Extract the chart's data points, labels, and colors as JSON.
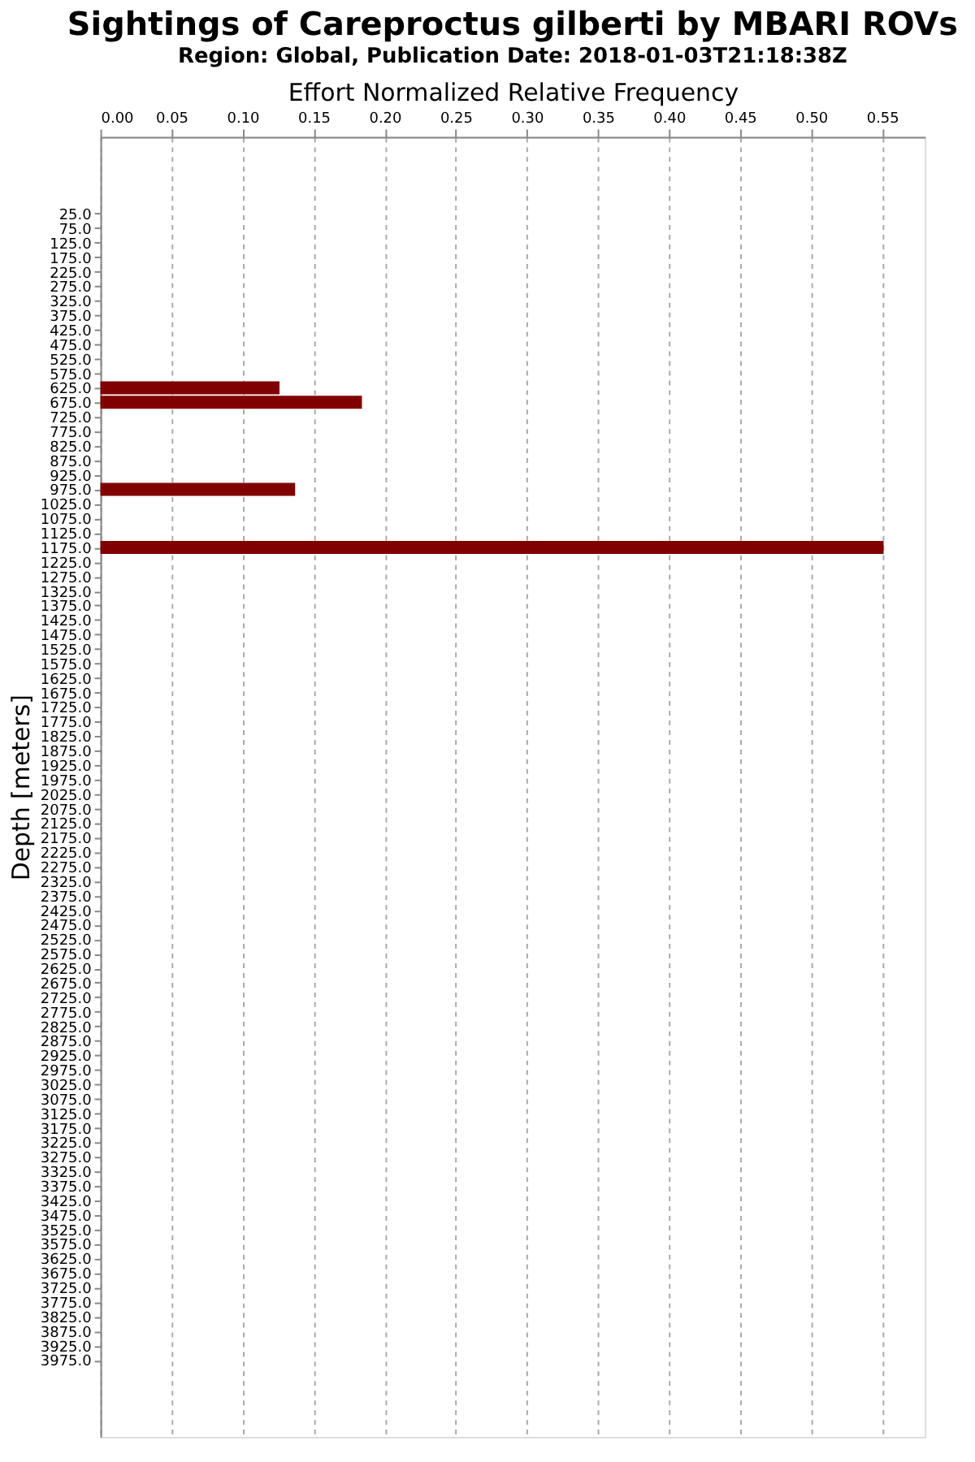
{
  "chart_data": {
    "type": "bar",
    "orientation": "horizontal",
    "title": "Sightings of Careproctus gilberti by MBARI ROVs",
    "subtitle": "Region: Global, Publication Date: 2018-01-03T21:18:38Z",
    "xlabel": "Effort Normalized Relative Frequency",
    "ylabel": "Depth [meters]",
    "categories": [
      "25.0",
      "75.0",
      "125.0",
      "175.0",
      "225.0",
      "275.0",
      "325.0",
      "375.0",
      "425.0",
      "475.0",
      "525.0",
      "575.0",
      "625.0",
      "675.0",
      "725.0",
      "775.0",
      "825.0",
      "875.0",
      "925.0",
      "975.0",
      "1025.0",
      "1075.0",
      "1125.0",
      "1175.0",
      "1225.0",
      "1275.0",
      "1325.0",
      "1375.0",
      "1425.0",
      "1475.0",
      "1525.0",
      "1575.0",
      "1625.0",
      "1675.0",
      "1725.0",
      "1775.0",
      "1825.0",
      "1875.0",
      "1925.0",
      "1975.0",
      "2025.0",
      "2075.0",
      "2125.0",
      "2175.0",
      "2225.0",
      "2275.0",
      "2325.0",
      "2375.0",
      "2425.0",
      "2475.0",
      "2525.0",
      "2575.0",
      "2625.0",
      "2675.0",
      "2725.0",
      "2775.0",
      "2825.0",
      "2875.0",
      "2925.0",
      "2975.0",
      "3025.0",
      "3075.0",
      "3125.0",
      "3175.0",
      "3225.0",
      "3275.0",
      "3325.0",
      "3375.0",
      "3425.0",
      "3475.0",
      "3525.0",
      "3575.0",
      "3625.0",
      "3675.0",
      "3725.0",
      "3775.0",
      "3825.0",
      "3875.0",
      "3925.0",
      "3975.0"
    ],
    "values": [
      null,
      null,
      null,
      null,
      null,
      null,
      null,
      null,
      null,
      null,
      null,
      null,
      0.126,
      0.184,
      null,
      null,
      null,
      null,
      null,
      0.137,
      null,
      null,
      null,
      0.551,
      null,
      null,
      null,
      null,
      null,
      null,
      null,
      null,
      null,
      null,
      null,
      null,
      null,
      null,
      null,
      null,
      null,
      null,
      null,
      null,
      null,
      null,
      null,
      null,
      null,
      null,
      null,
      null,
      null,
      null,
      null,
      null,
      null,
      null,
      null,
      null,
      null,
      null,
      null,
      null,
      null,
      null,
      null,
      null,
      null,
      null,
      null,
      null,
      null,
      null,
      null,
      null,
      null,
      null,
      null,
      null
    ],
    "color": "#800000",
    "xlim": [
      0,
      0.58
    ],
    "xticks": [
      {
        "value": 0,
        "label": "0.00"
      },
      0.05,
      {
        "value": 0.1,
        "label": "0.10"
      },
      0.15,
      {
        "value": 0.2,
        "label": "0.20"
      },
      0.25,
      {
        "value": 0.3,
        "label": "0.30"
      },
      0.35,
      {
        "value": 0.4,
        "label": "0.40"
      },
      0.45,
      {
        "value": 0.5,
        "label": "0.50"
      },
      0.55
    ],
    "grid": "x"
  }
}
